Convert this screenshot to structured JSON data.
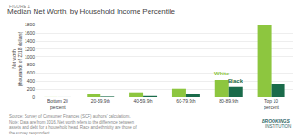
{
  "chart_data": {
    "type": "bar",
    "title": "Median Net Worth, by Household Income Percentile",
    "subtitle": "FIGURE 1",
    "categories": [
      "Bottom 20 percent",
      "20-39.9th",
      "40-59.9th",
      "60-79.9th",
      "80-89.9th",
      "Top 10 percent"
    ],
    "series": [
      {
        "name": "White",
        "color": "#8dc63f",
        "values": [
          2,
          75,
          120,
          210,
          430,
          1790
        ]
      },
      {
        "name": "Black",
        "color": "#1a6b4a",
        "values": [
          1,
          14,
          28,
          80,
          255,
          340
        ]
      }
    ],
    "ylabel": "Net worth\n(thousands of 2018 dollars)",
    "ylim": [
      0,
      1900
    ],
    "yticks": [
      0,
      200,
      400,
      600,
      800,
      1000,
      1200,
      1400,
      1600,
      1800
    ],
    "grid": true,
    "annotations": [
      "Source: Survey of Consumer Finances (SCF) authors' calculations.",
      "Note: Data are from 2016. Net worth refers to the difference between assets and debt for a household head. Race and ethnicity are those of the survey respondent.",
      "BROOKINGS",
      "INSTITUTION"
    ]
  }
}
